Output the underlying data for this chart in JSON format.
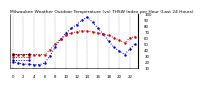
{
  "title": "Milwaukee Weather Outdoor Temperature (vs) THSW Index per Hour (Last 24 Hours)",
  "hours": [
    0,
    1,
    2,
    3,
    4,
    5,
    6,
    7,
    8,
    9,
    10,
    11,
    12,
    13,
    14,
    15,
    16,
    17,
    18,
    19,
    20,
    21,
    22,
    23
  ],
  "temp": [
    32,
    32,
    32,
    32,
    32,
    32,
    32,
    40,
    50,
    58,
    64,
    68,
    70,
    72,
    71,
    70,
    68,
    66,
    64,
    60,
    56,
    52,
    60,
    62
  ],
  "thsw": [
    20,
    18,
    16,
    16,
    15,
    15,
    18,
    30,
    45,
    58,
    68,
    76,
    82,
    90,
    94,
    86,
    76,
    66,
    54,
    44,
    38,
    32,
    42,
    50
  ],
  "black_legend": [
    32,
    32
  ],
  "temp_color": "#cc0000",
  "thsw_color": "#0000cc",
  "black_color": "#000000",
  "bg_color": "#ffffff",
  "grid_color": "#888888",
  "ylim_min": 10,
  "ylim_max": 100,
  "yticks": [
    10,
    20,
    30,
    40,
    50,
    60,
    70,
    80,
    90,
    100
  ],
  "title_fontsize": 3.2,
  "tick_fontsize": 2.8
}
